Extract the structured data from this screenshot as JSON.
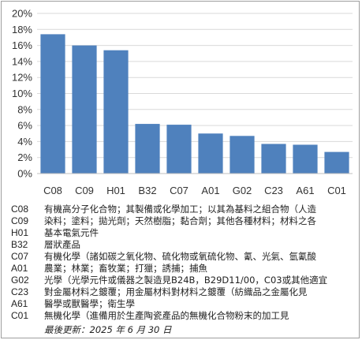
{
  "chart_data": {
    "type": "bar",
    "categories": [
      "C08",
      "C09",
      "H01",
      "B32",
      "C07",
      "A01",
      "G02",
      "C23",
      "A61",
      "C01"
    ],
    "values": [
      17.4,
      16.0,
      15.4,
      6.2,
      6.1,
      5.0,
      4.7,
      3.7,
      3.6,
      2.7
    ],
    "yticks": [
      "0%",
      "2%",
      "4%",
      "6%",
      "8%",
      "10%",
      "12%",
      "14%",
      "16%",
      "18%",
      "20%"
    ],
    "ylim": [
      0,
      20
    ],
    "bar_color": "#4f81bd",
    "grid": true
  },
  "legend": [
    {
      "code": "C08",
      "desc": "有機高分子化合物；其製備或化學加工；以其為基料之組合物（人造\n染料；塗料；拋光劑；天然樹脂；黏合劑；其他各種材料；材料之各"
    },
    {
      "code": "C09",
      "desc": ""
    },
    {
      "code": "H01",
      "desc": "基本電氣元件"
    },
    {
      "code": "B32",
      "desc": "層狀產品"
    },
    {
      "code": "C07",
      "desc": "有機化學（諸如碳之氧化物、硫化物或氧硫化物、氰、光氣、氫氰酸"
    },
    {
      "code": "A01",
      "desc": "農業；林業；畜牧業；打獵；誘捕；捕魚"
    },
    {
      "code": "G02",
      "desc": "光學（光學元件或儀器之製造見B24B，B29D11/00，C03或其他適宜"
    },
    {
      "code": "C23",
      "desc": "對金屬材料之鍍覆；用金屬材料對材料之鍍覆（紡織品之金屬化見"
    },
    {
      "code": "A61",
      "desc": "醫學或獸醫學；衛生學"
    },
    {
      "code": "C01",
      "desc": "無機化學（進備用於生產陶瓷產品的無機化合物粉末的加工見"
    }
  ],
  "footnote": "最後更新：2025 年 6 月 30 日"
}
